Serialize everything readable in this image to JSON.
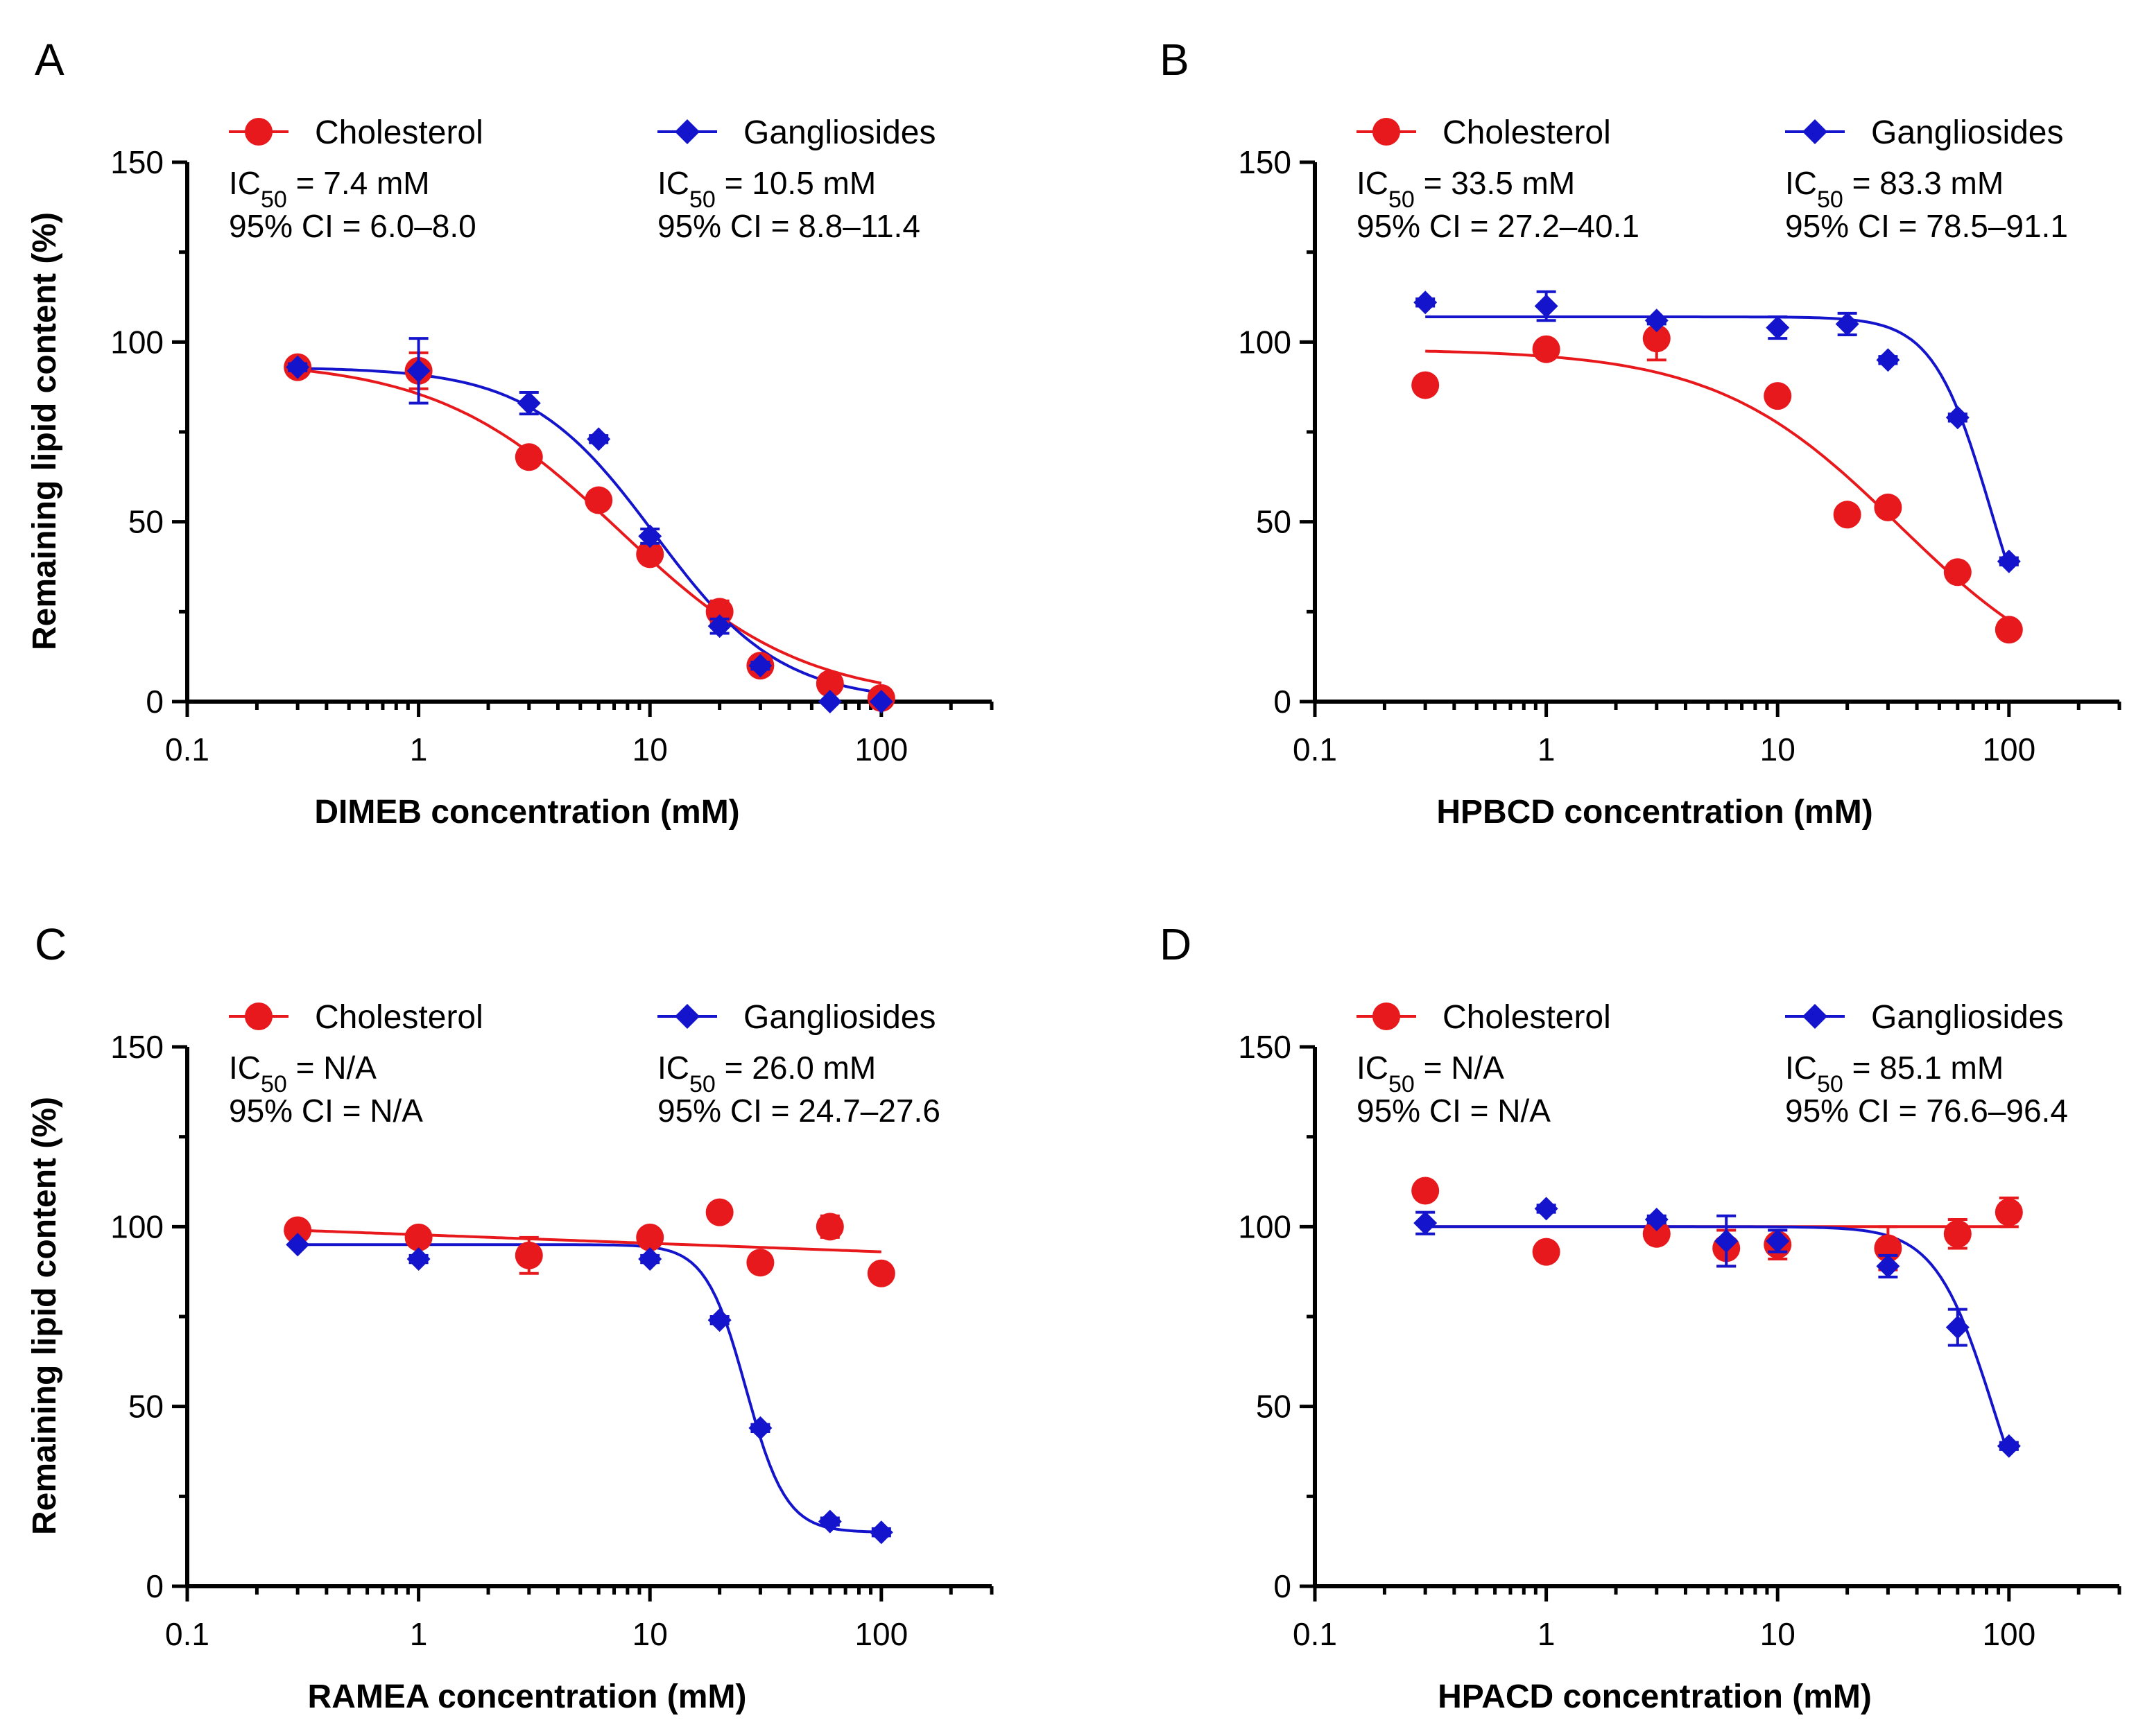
{
  "chart_data": [
    {
      "type": "scatter",
      "panel": "A",
      "xlabel": "DIMEB concentration (mM)",
      "ylabel": "Remaining lipid content (%)",
      "xscale": "log",
      "xlim": [
        0.1,
        300
      ],
      "ylim": [
        0,
        150
      ],
      "xticks": [
        "0.1",
        "1",
        "10",
        "100"
      ],
      "yticks": [
        "0",
        "50",
        "100",
        "150"
      ],
      "series": [
        {
          "name": "Cholesterol",
          "color": "#e8191c",
          "marker": "circle",
          "ic50_label": "IC",
          "ic50_sub": "50",
          "ic50_text": " = 7.4 mM",
          "ci_text": "95% CI = 6.0–8.0",
          "ic50": 7.4,
          "top": 95,
          "bottom": 0,
          "hill": 1.1,
          "x": [
            0.3,
            1,
            3,
            6,
            10,
            20,
            30,
            60,
            100
          ],
          "y": [
            93,
            92,
            68,
            56,
            41,
            25,
            10,
            5,
            1
          ],
          "err": [
            2,
            5,
            2,
            2,
            2,
            3,
            2,
            1,
            1
          ]
        },
        {
          "name": "Gangliosides",
          "color": "#1414cc",
          "marker": "diamond",
          "ic50_label": "IC",
          "ic50_sub": "50",
          "ic50_text": " = 10.5 mM",
          "ci_text": "95% CI = 8.8–11.4",
          "ic50": 10.5,
          "top": 93,
          "bottom": 0,
          "hill": 1.6,
          "x": [
            0.3,
            1,
            3,
            6,
            10,
            20,
            30,
            60,
            100
          ],
          "y": [
            93,
            92,
            83,
            73,
            46,
            21,
            10,
            0,
            0
          ],
          "err": [
            1,
            9,
            3,
            1,
            2,
            2,
            1,
            0,
            0
          ]
        }
      ]
    },
    {
      "type": "scatter",
      "panel": "B",
      "xlabel": "HPBCD concentration (mM)",
      "ylabel": "Remaining lipid content (%)",
      "xscale": "log",
      "xlim": [
        0.1,
        300
      ],
      "ylim": [
        0,
        150
      ],
      "xticks": [
        "0.1",
        "1",
        "10",
        "100"
      ],
      "yticks": [
        "0",
        "50",
        "100",
        "150"
      ],
      "series": [
        {
          "name": "Cholesterol",
          "color": "#e8191c",
          "marker": "circle",
          "ic50_label": "IC",
          "ic50_sub": "50",
          "ic50_text": " = 33.5 mM",
          "ci_text": "95% CI = 27.2–40.1",
          "ic50": 33.5,
          "top": 98,
          "bottom": 0,
          "hill": 1.1,
          "x": [
            0.3,
            1,
            3,
            10,
            20,
            30,
            60,
            100
          ],
          "y": [
            88,
            98,
            101,
            85,
            52,
            54,
            36,
            20
          ],
          "err": [
            1,
            1,
            6,
            1,
            1,
            1,
            1,
            1
          ]
        },
        {
          "name": "Gangliosides",
          "color": "#1414cc",
          "marker": "diamond",
          "ic50_label": "IC",
          "ic50_sub": "50",
          "ic50_text": " = 83.3 mM",
          "ci_text": "95% CI = 78.5–91.1",
          "ic50": 83.3,
          "top": 107,
          "bottom": 0,
          "hill": 3.5,
          "x": [
            0.3,
            1,
            3,
            10,
            20,
            30,
            60,
            100
          ],
          "y": [
            111,
            110,
            106,
            104,
            105,
            95,
            79,
            39
          ],
          "err": [
            1,
            4,
            1,
            3,
            3,
            1,
            1,
            1
          ]
        }
      ]
    },
    {
      "type": "scatter",
      "panel": "C",
      "xlabel": "RAMEA concentration (mM)",
      "ylabel": "Remaining lipid content (%)",
      "xscale": "log",
      "xlim": [
        0.1,
        300
      ],
      "ylim": [
        0,
        150
      ],
      "xticks": [
        "0.1",
        "1",
        "10",
        "100"
      ],
      "yticks": [
        "0",
        "50",
        "100",
        "150"
      ],
      "series": [
        {
          "name": "Cholesterol",
          "color": "#e8191c",
          "marker": "circle",
          "ic50_label": "IC",
          "ic50_sub": "50",
          "ic50_text": " = N/A",
          "ci_text": "95% CI = N/A",
          "fit": "linear",
          "fit_start": 99,
          "fit_end": 93,
          "x": [
            0.3,
            1,
            3,
            10,
            20,
            30,
            60,
            100
          ],
          "y": [
            99,
            97,
            92,
            97,
            104,
            90,
            100,
            87
          ],
          "err": [
            1,
            1,
            5,
            1,
            1,
            1,
            3,
            1
          ]
        },
        {
          "name": "Gangliosides",
          "color": "#1414cc",
          "marker": "diamond",
          "ic50_label": "IC",
          "ic50_sub": "50",
          "ic50_text": " = 26.0 mM",
          "ci_text": "95% CI = 24.7–27.6",
          "ic50": 26.0,
          "top": 95,
          "bottom": 15,
          "hill": 5.0,
          "x": [
            0.3,
            1,
            10,
            20,
            30,
            60,
            100
          ],
          "y": [
            95,
            91,
            91,
            74,
            44,
            18,
            15
          ],
          "err": [
            0,
            1,
            1,
            1,
            1,
            1,
            1
          ]
        }
      ]
    },
    {
      "type": "scatter",
      "panel": "D",
      "xlabel": "HPACD concentration (mM)",
      "ylabel": "Remaining lipid content (%)",
      "xscale": "log",
      "xlim": [
        0.1,
        300
      ],
      "ylim": [
        0,
        150
      ],
      "xticks": [
        "0.1",
        "1",
        "10",
        "100"
      ],
      "yticks": [
        "0",
        "50",
        "100",
        "150"
      ],
      "series": [
        {
          "name": "Cholesterol",
          "color": "#e8191c",
          "marker": "circle",
          "ic50_label": "IC",
          "ic50_sub": "50",
          "ic50_text": " = N/A",
          "ci_text": "95% CI = N/A",
          "fit": "linear",
          "fit_start": 100,
          "fit_end": 100,
          "x": [
            0.3,
            1,
            3,
            6,
            10,
            30,
            60,
            100
          ],
          "y": [
            110,
            93,
            98,
            94,
            95,
            94,
            98,
            104
          ],
          "err": [
            1,
            1,
            2,
            5,
            4,
            6,
            4,
            4
          ]
        },
        {
          "name": "Gangliosides",
          "color": "#1414cc",
          "marker": "diamond",
          "ic50_label": "IC",
          "ic50_sub": "50",
          "ic50_text": " = 85.1 mM",
          "ci_text": "95% CI = 76.6–96.4",
          "ic50": 85.1,
          "top": 100,
          "bottom": 0,
          "hill": 3.5,
          "x": [
            0.3,
            1,
            3,
            6,
            10,
            30,
            60,
            100
          ],
          "y": [
            101,
            105,
            102,
            96,
            96,
            89,
            72,
            39
          ],
          "err": [
            3,
            1,
            1,
            7,
            3,
            3,
            5,
            1
          ]
        }
      ]
    }
  ]
}
